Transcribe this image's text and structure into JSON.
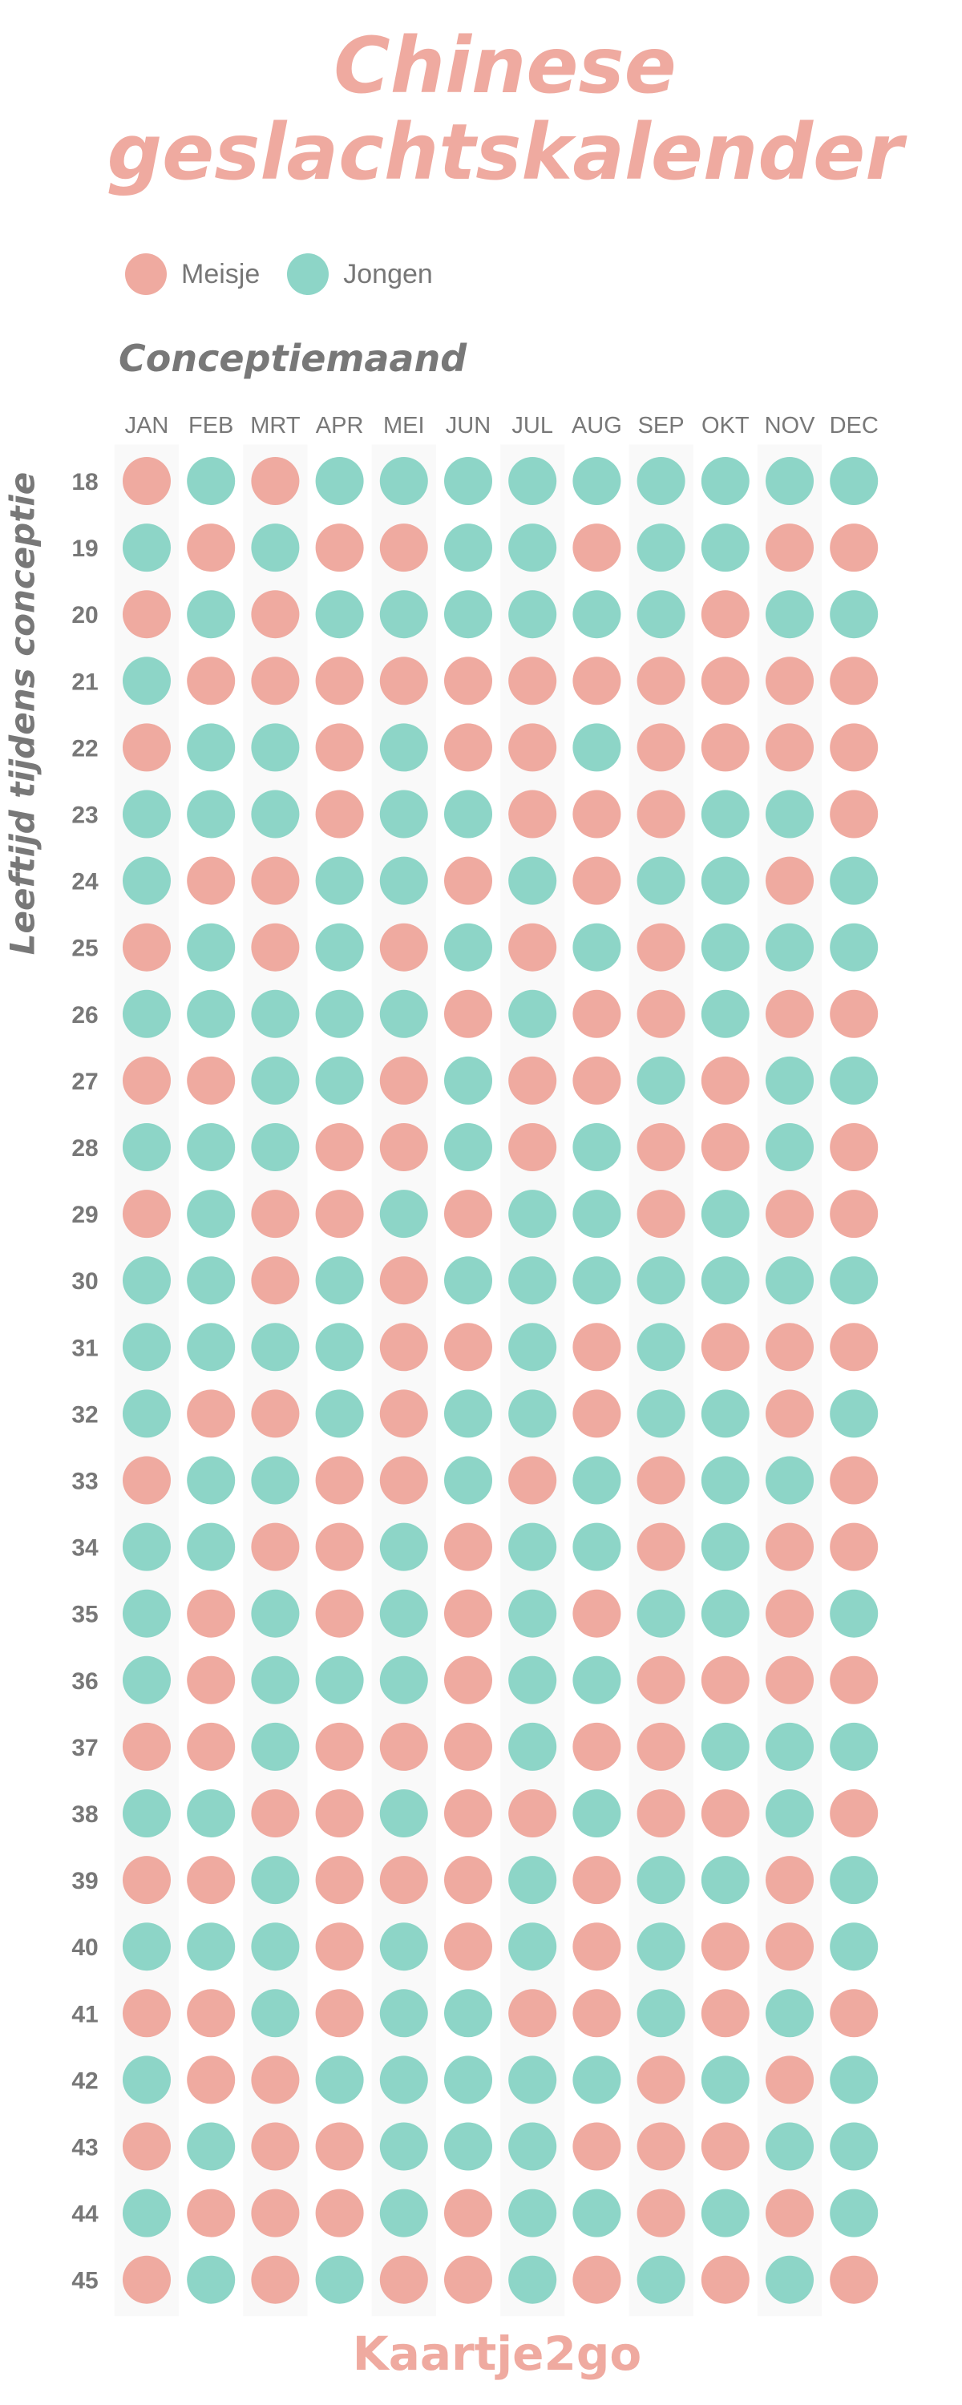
{
  "title_lines": [
    "Chinese",
    "geslachtskalender"
  ],
  "legend": [
    {
      "label": "Meisje",
      "color": "#efaaa0"
    },
    {
      "label": "Jongen",
      "color": "#8dd5c7"
    }
  ],
  "brand": "Kaartje2go",
  "colors": {
    "meisje": "#efaaa0",
    "jongen": "#8dd5c7",
    "text": "#787878",
    "column_band": "#f9f9f9"
  },
  "chart_data": {
    "type": "heatmap",
    "title": "Chinese geslachtskalender",
    "xlabel": "Conceptiemaand",
    "ylabel": "Leeftijd tijdens conceptie",
    "x": [
      "JAN",
      "FEB",
      "MRT",
      "APR",
      "MEI",
      "JUN",
      "JUL",
      "AUG",
      "SEP",
      "OKT",
      "NOV",
      "DEC"
    ],
    "y": [
      18,
      19,
      20,
      21,
      22,
      23,
      24,
      25,
      26,
      27,
      28,
      29,
      30,
      31,
      32,
      33,
      34,
      35,
      36,
      37,
      38,
      39,
      40,
      41,
      42,
      43,
      44,
      45
    ],
    "categories": {
      "M": "Meisje",
      "J": "Jongen"
    },
    "rows": [
      [
        "M",
        "J",
        "M",
        "J",
        "J",
        "J",
        "J",
        "J",
        "J",
        "J",
        "J",
        "J"
      ],
      [
        "J",
        "M",
        "J",
        "M",
        "M",
        "J",
        "J",
        "M",
        "J",
        "J",
        "M",
        "M"
      ],
      [
        "M",
        "J",
        "M",
        "J",
        "J",
        "J",
        "J",
        "J",
        "J",
        "M",
        "J",
        "J"
      ],
      [
        "J",
        "M",
        "M",
        "M",
        "M",
        "M",
        "M",
        "M",
        "M",
        "M",
        "M",
        "M"
      ],
      [
        "M",
        "J",
        "J",
        "M",
        "J",
        "M",
        "M",
        "J",
        "M",
        "M",
        "M",
        "M"
      ],
      [
        "J",
        "J",
        "J",
        "M",
        "J",
        "J",
        "M",
        "M",
        "M",
        "J",
        "J",
        "M"
      ],
      [
        "J",
        "M",
        "M",
        "J",
        "J",
        "M",
        "J",
        "M",
        "J",
        "J",
        "M",
        "J"
      ],
      [
        "M",
        "J",
        "M",
        "J",
        "M",
        "J",
        "M",
        "J",
        "M",
        "J",
        "J",
        "J"
      ],
      [
        "J",
        "J",
        "J",
        "J",
        "J",
        "M",
        "J",
        "M",
        "M",
        "J",
        "M",
        "M"
      ],
      [
        "M",
        "M",
        "J",
        "J",
        "M",
        "J",
        "M",
        "M",
        "J",
        "M",
        "J",
        "J"
      ],
      [
        "J",
        "J",
        "J",
        "M",
        "M",
        "J",
        "M",
        "J",
        "M",
        "M",
        "J",
        "M"
      ],
      [
        "M",
        "J",
        "M",
        "M",
        "J",
        "M",
        "J",
        "J",
        "M",
        "J",
        "M",
        "M"
      ],
      [
        "J",
        "J",
        "M",
        "J",
        "M",
        "J",
        "J",
        "J",
        "J",
        "J",
        "J",
        "J"
      ],
      [
        "J",
        "J",
        "J",
        "J",
        "M",
        "M",
        "J",
        "M",
        "J",
        "M",
        "M",
        "M"
      ],
      [
        "J",
        "M",
        "M",
        "J",
        "M",
        "J",
        "J",
        "M",
        "J",
        "J",
        "M",
        "J"
      ],
      [
        "M",
        "J",
        "J",
        "M",
        "M",
        "J",
        "M",
        "J",
        "M",
        "J",
        "J",
        "M"
      ],
      [
        "J",
        "J",
        "M",
        "M",
        "J",
        "M",
        "J",
        "J",
        "M",
        "J",
        "M",
        "M"
      ],
      [
        "J",
        "M",
        "J",
        "M",
        "J",
        "M",
        "J",
        "M",
        "J",
        "J",
        "M",
        "J"
      ],
      [
        "J",
        "M",
        "J",
        "J",
        "J",
        "M",
        "J",
        "J",
        "M",
        "M",
        "M",
        "M"
      ],
      [
        "M",
        "M",
        "J",
        "M",
        "M",
        "M",
        "J",
        "M",
        "M",
        "J",
        "J",
        "J"
      ],
      [
        "J",
        "J",
        "M",
        "M",
        "J",
        "M",
        "M",
        "J",
        "M",
        "M",
        "J",
        "M"
      ],
      [
        "M",
        "M",
        "J",
        "M",
        "M",
        "M",
        "J",
        "M",
        "J",
        "J",
        "M",
        "J"
      ],
      [
        "J",
        "J",
        "J",
        "M",
        "J",
        "M",
        "J",
        "M",
        "J",
        "M",
        "M",
        "J"
      ],
      [
        "M",
        "M",
        "J",
        "M",
        "J",
        "J",
        "M",
        "M",
        "J",
        "M",
        "J",
        "M"
      ],
      [
        "J",
        "M",
        "M",
        "J",
        "J",
        "J",
        "J",
        "J",
        "M",
        "J",
        "M",
        "J"
      ],
      [
        "M",
        "J",
        "M",
        "M",
        "J",
        "J",
        "J",
        "M",
        "M",
        "M",
        "J",
        "J"
      ],
      [
        "J",
        "M",
        "M",
        "M",
        "J",
        "M",
        "J",
        "J",
        "M",
        "J",
        "M",
        "J"
      ],
      [
        "M",
        "J",
        "M",
        "J",
        "M",
        "M",
        "J",
        "M",
        "J",
        "M",
        "J",
        "M"
      ]
    ]
  }
}
